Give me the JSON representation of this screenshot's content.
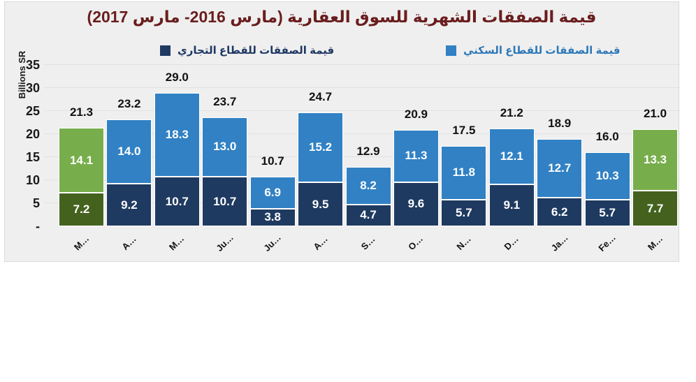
{
  "chart": {
    "title": "قيمة الصفقات الشهرية للسوق العقارية (مارس 2016- مارس 2017)",
    "y_axis_label": "Billions SR",
    "legend": {
      "commercial": {
        "label": "قيمة الصفقات للقطاع التجاري",
        "color": "#1f3a60"
      },
      "residential": {
        "label": "قيمة الصفقات للقطاع السكني",
        "color": "#3181c4"
      }
    },
    "colors": {
      "background": "#efefef",
      "title": "#6a1d1d",
      "legend_commercial_text": "#1f3864",
      "legend_residential_text": "#2e79b8"
    }
  },
  "chart_data": {
    "type": "bar",
    "stacked": true,
    "title": "قيمة الصفقات الشهرية للسوق العقارية (مارس 2016- مارس 2017)",
    "ylabel": "Billions SR",
    "ylim": [
      0,
      35
    ],
    "ytick_step": 5,
    "zero_tick_label": "-",
    "grid": true,
    "legend_position": "top",
    "categories": [
      "M…",
      "A…",
      "M…",
      "Ju…",
      "Ju…",
      "A…",
      "S…",
      "O…",
      "N…",
      "D…",
      "Ja…",
      "Fe…",
      "M…"
    ],
    "series": [
      {
        "name": "قيمة الصفقات للقطاع السكني",
        "role": "residential",
        "values": [
          14.1,
          14.0,
          18.3,
          13.0,
          6.9,
          15.2,
          8.2,
          11.3,
          11.8,
          12.1,
          12.7,
          10.3,
          13.3
        ],
        "color": "#3181c4",
        "highlight_color": "#77ae4b"
      },
      {
        "name": "قيمة الصفقات للقطاع التجاري",
        "role": "commercial",
        "values": [
          7.2,
          9.2,
          10.7,
          10.7,
          3.8,
          9.5,
          4.7,
          9.6,
          5.7,
          9.1,
          6.2,
          5.7,
          7.7
        ],
        "color": "#1f3a60",
        "highlight_color": "#44621e"
      }
    ],
    "totals": [
      21.3,
      23.2,
      29.0,
      23.7,
      10.7,
      24.7,
      12.9,
      20.9,
      17.5,
      21.2,
      18.9,
      16.0,
      21.0
    ],
    "highlighted_categories": [
      0,
      12
    ]
  }
}
